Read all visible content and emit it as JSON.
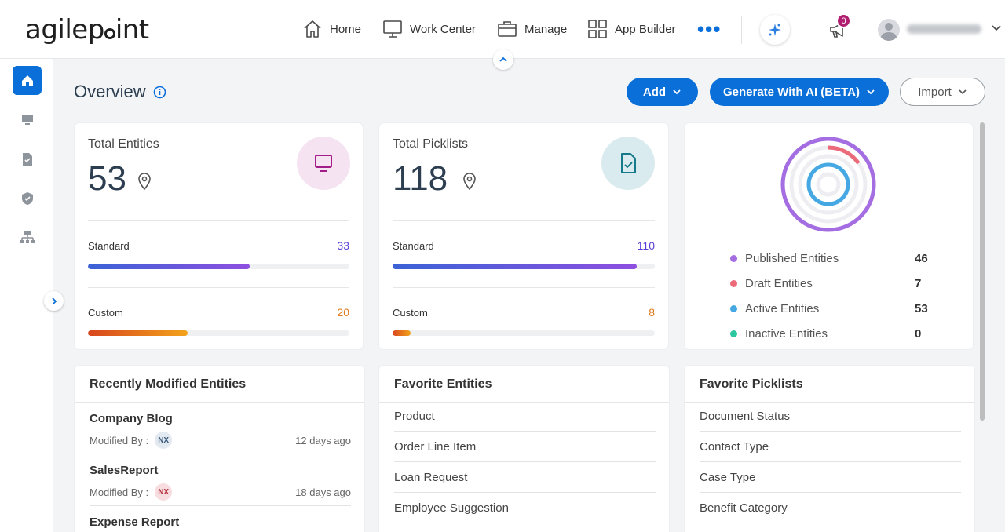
{
  "brand": {
    "logo_text_a": "agilep",
    "logo_text_b": "int"
  },
  "nav": {
    "home": "Home",
    "work_center": "Work Center",
    "manage": "Manage",
    "app_builder": "App Builder",
    "more": "•••",
    "notification_count": "0"
  },
  "header": {
    "title": "Overview",
    "add_label": "Add",
    "generate_label": "Generate With AI (BETA)",
    "import_label": "Import"
  },
  "entities_card": {
    "title": "Total Entities",
    "total": "53",
    "standard_label": "Standard",
    "standard_value": "33",
    "standard_fraction": 0.62,
    "custom_label": "Custom",
    "custom_value": "20",
    "custom_fraction": 0.38
  },
  "picklists_card": {
    "title": "Total Picklists",
    "total": "118",
    "standard_label": "Standard",
    "standard_value": "110",
    "standard_fraction": 0.93,
    "custom_label": "Custom",
    "custom_value": "8",
    "custom_fraction": 0.07
  },
  "status_card": {
    "items": [
      {
        "label": "Published Entities",
        "value": "46",
        "color": "#a56de2"
      },
      {
        "label": "Draft Entities",
        "value": "7",
        "color": "#ec6b7a"
      },
      {
        "label": "Active Entities",
        "value": "53",
        "color": "#46a8e3"
      },
      {
        "label": "Inactive Entities",
        "value": "0",
        "color": "#2cc7a0"
      }
    ]
  },
  "recent": {
    "title": "Recently Modified Entities",
    "modified_by_label": "Modified By :",
    "items": [
      {
        "name": "Company Blog",
        "initials": "NX",
        "time": "12 days ago"
      },
      {
        "name": "SalesReport",
        "initials": "NX",
        "time": "18 days ago"
      },
      {
        "name": "Expense Report",
        "initials": "",
        "time": ""
      }
    ]
  },
  "fav_entities": {
    "title": "Favorite Entities",
    "items": [
      "Product",
      "Order Line Item",
      "Loan Request",
      "Employee Suggestion"
    ]
  },
  "fav_picklists": {
    "title": "Favorite Picklists",
    "items": [
      "Document Status",
      "Contact Type",
      "Case Type",
      "Benefit Category"
    ]
  },
  "colors": {
    "primary": "#0a6fd8",
    "standard_bar": "linear-gradient(90deg,#3a63d6,#8e4fe0)",
    "custom_bar": "linear-gradient(90deg,#d8461e,#f2a31b)"
  }
}
